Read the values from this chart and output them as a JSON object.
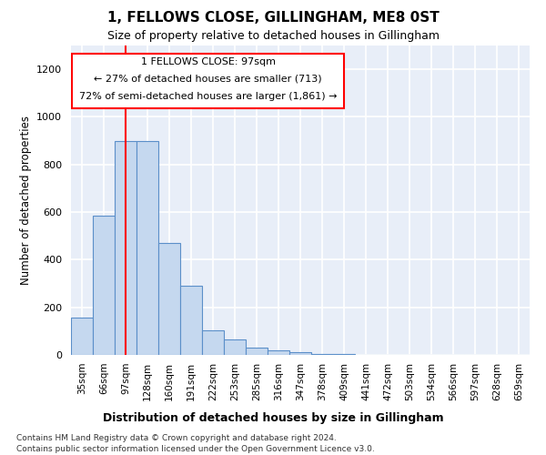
{
  "title": "1, FELLOWS CLOSE, GILLINGHAM, ME8 0ST",
  "subtitle": "Size of property relative to detached houses in Gillingham",
  "xlabel": "Distribution of detached houses by size in Gillingham",
  "ylabel": "Number of detached properties",
  "bin_labels": [
    "35sqm",
    "66sqm",
    "97sqm",
    "128sqm",
    "160sqm",
    "191sqm",
    "222sqm",
    "253sqm",
    "285sqm",
    "316sqm",
    "347sqm",
    "378sqm",
    "409sqm",
    "441sqm",
    "472sqm",
    "503sqm",
    "534sqm",
    "566sqm",
    "597sqm",
    "628sqm",
    "659sqm"
  ],
  "bar_heights": [
    155,
    585,
    900,
    900,
    470,
    290,
    105,
    65,
    30,
    20,
    10,
    5,
    2,
    1,
    0,
    0,
    0,
    0,
    0,
    0,
    0
  ],
  "bar_color": "#c5d8ef",
  "bar_edge_color": "#5b8fc9",
  "red_line_index": 2,
  "annotation_line1": "1 FELLOWS CLOSE: 97sqm",
  "annotation_line2": "← 27% of detached houses are smaller (713)",
  "annotation_line3": "72% of semi-detached houses are larger (1,861) →",
  "ylim": [
    0,
    1300
  ],
  "yticks": [
    0,
    200,
    400,
    600,
    800,
    1000,
    1200
  ],
  "footer_line1": "Contains HM Land Registry data © Crown copyright and database right 2024.",
  "footer_line2": "Contains public sector information licensed under the Open Government Licence v3.0.",
  "background_color": "#ffffff",
  "plot_bg_color": "#e8eef8"
}
